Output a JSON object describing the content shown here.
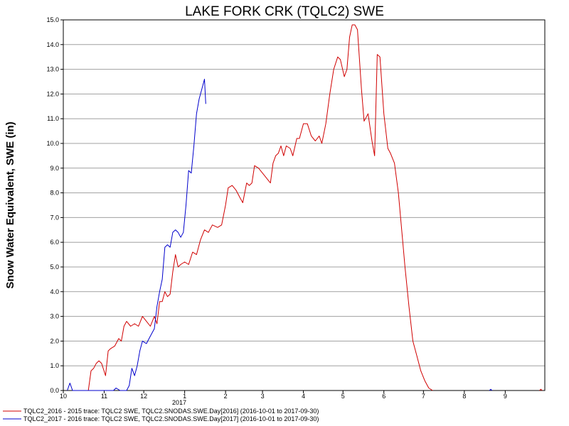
{
  "chart_data": {
    "type": "line",
    "title": "LAKE FORK CRK (TQLC2) SWE",
    "xlabel": "",
    "ylabel": "Snow Water Equivalent, SWE (in)",
    "ylim": [
      0,
      15
    ],
    "y_ticks": [
      "0.0",
      "1.0",
      "2.0",
      "3.0",
      "4.0",
      "5.0",
      "6.0",
      "7.0",
      "8.0",
      "9.0",
      "10.0",
      "11.0",
      "12.0",
      "13.0",
      "14.0",
      "15.0"
    ],
    "x_range": [
      "2016-10-01",
      "2017-09-30"
    ],
    "x_ticks": [
      {
        "label": "10",
        "date": "2016-10-01"
      },
      {
        "label": "11",
        "date": "2016-11-01"
      },
      {
        "label": "12",
        "date": "2016-12-01"
      },
      {
        "label": "1",
        "date": "2017-01-01"
      },
      {
        "label": "2",
        "date": "2017-02-01"
      },
      {
        "label": "3",
        "date": "2017-03-01"
      },
      {
        "label": "4",
        "date": "2017-04-01"
      },
      {
        "label": "5",
        "date": "2017-05-01"
      },
      {
        "label": "6",
        "date": "2017-06-01"
      },
      {
        "label": "7",
        "date": "2017-07-01"
      },
      {
        "label": "8",
        "date": "2017-08-01"
      },
      {
        "label": "9",
        "date": "2017-09-01"
      }
    ],
    "year_label": "2017",
    "grid": "horizontal",
    "legend_position": "bottom-left",
    "series": [
      {
        "name": "TQLC2_2016 - 2015 trace: TQLC2 SWE, TQLC2.SNODAS.SWE.Day[2016] (2016-10-01 to 2017-09-30)",
        "color": "#d00000",
        "points": [
          [
            "2016-10-20",
            0.0
          ],
          [
            "2016-10-22",
            0.8
          ],
          [
            "2016-10-24",
            0.9
          ],
          [
            "2016-10-26",
            1.1
          ],
          [
            "2016-10-28",
            1.2
          ],
          [
            "2016-10-30",
            1.1
          ],
          [
            "2016-11-02",
            0.6
          ],
          [
            "2016-11-04",
            1.6
          ],
          [
            "2016-11-06",
            1.7
          ],
          [
            "2016-11-09",
            1.8
          ],
          [
            "2016-11-12",
            2.1
          ],
          [
            "2016-11-14",
            2.0
          ],
          [
            "2016-11-16",
            2.6
          ],
          [
            "2016-11-18",
            2.8
          ],
          [
            "2016-11-21",
            2.6
          ],
          [
            "2016-11-24",
            2.7
          ],
          [
            "2016-11-27",
            2.6
          ],
          [
            "2016-11-30",
            3.0
          ],
          [
            "2016-12-03",
            2.8
          ],
          [
            "2016-12-06",
            2.6
          ],
          [
            "2016-12-09",
            3.0
          ],
          [
            "2016-12-11",
            2.7
          ],
          [
            "2016-12-13",
            3.6
          ],
          [
            "2016-12-15",
            3.6
          ],
          [
            "2016-12-17",
            4.0
          ],
          [
            "2016-12-19",
            3.8
          ],
          [
            "2016-12-21",
            3.9
          ],
          [
            "2016-12-23",
            4.8
          ],
          [
            "2016-12-25",
            5.5
          ],
          [
            "2016-12-27",
            5.0
          ],
          [
            "2016-12-29",
            5.1
          ],
          [
            "2017-01-01",
            5.2
          ],
          [
            "2017-01-04",
            5.1
          ],
          [
            "2017-01-07",
            5.6
          ],
          [
            "2017-01-10",
            5.5
          ],
          [
            "2017-01-13",
            6.1
          ],
          [
            "2017-01-16",
            6.5
          ],
          [
            "2017-01-19",
            6.4
          ],
          [
            "2017-01-22",
            6.7
          ],
          [
            "2017-01-26",
            6.6
          ],
          [
            "2017-01-29",
            6.7
          ],
          [
            "2017-02-01",
            7.5
          ],
          [
            "2017-02-03",
            8.2
          ],
          [
            "2017-02-06",
            8.3
          ],
          [
            "2017-02-09",
            8.1
          ],
          [
            "2017-02-12",
            7.8
          ],
          [
            "2017-02-14",
            7.6
          ],
          [
            "2017-02-17",
            8.4
          ],
          [
            "2017-02-19",
            8.3
          ],
          [
            "2017-02-21",
            8.4
          ],
          [
            "2017-02-23",
            9.1
          ],
          [
            "2017-02-26",
            9.0
          ],
          [
            "2017-03-01",
            8.8
          ],
          [
            "2017-03-04",
            8.6
          ],
          [
            "2017-03-07",
            8.4
          ],
          [
            "2017-03-09",
            9.2
          ],
          [
            "2017-03-11",
            9.5
          ],
          [
            "2017-03-13",
            9.6
          ],
          [
            "2017-03-15",
            9.9
          ],
          [
            "2017-03-17",
            9.5
          ],
          [
            "2017-03-19",
            9.9
          ],
          [
            "2017-03-22",
            9.8
          ],
          [
            "2017-03-24",
            9.5
          ],
          [
            "2017-03-27",
            10.2
          ],
          [
            "2017-03-29",
            10.2
          ],
          [
            "2017-04-01",
            10.8
          ],
          [
            "2017-04-04",
            10.8
          ],
          [
            "2017-04-07",
            10.3
          ],
          [
            "2017-04-10",
            10.1
          ],
          [
            "2017-04-13",
            10.3
          ],
          [
            "2017-04-15",
            10.0
          ],
          [
            "2017-04-18",
            10.8
          ],
          [
            "2017-04-21",
            12.0
          ],
          [
            "2017-04-24",
            13.0
          ],
          [
            "2017-04-27",
            13.5
          ],
          [
            "2017-04-29",
            13.4
          ],
          [
            "2017-05-02",
            12.7
          ],
          [
            "2017-05-04",
            13.0
          ],
          [
            "2017-05-06",
            14.3
          ],
          [
            "2017-05-08",
            14.8
          ],
          [
            "2017-05-10",
            14.8
          ],
          [
            "2017-05-12",
            14.6
          ],
          [
            "2017-05-15",
            12.2
          ],
          [
            "2017-05-17",
            10.9
          ],
          [
            "2017-05-20",
            11.2
          ],
          [
            "2017-05-23",
            10.1
          ],
          [
            "2017-05-25",
            9.5
          ],
          [
            "2017-05-27",
            13.6
          ],
          [
            "2017-05-29",
            13.5
          ],
          [
            "2017-06-01",
            11.2
          ],
          [
            "2017-06-04",
            9.8
          ],
          [
            "2017-06-06",
            9.6
          ],
          [
            "2017-06-09",
            9.2
          ],
          [
            "2017-06-12",
            8.0
          ],
          [
            "2017-06-15",
            6.2
          ],
          [
            "2017-06-17",
            5.0
          ],
          [
            "2017-06-20",
            3.4
          ],
          [
            "2017-06-23",
            2.0
          ],
          [
            "2017-06-26",
            1.4
          ],
          [
            "2017-06-29",
            0.8
          ],
          [
            "2017-07-02",
            0.4
          ],
          [
            "2017-07-05",
            0.1
          ],
          [
            "2017-07-08",
            0.0
          ]
        ]
      },
      {
        "name": "TQLC2_2017 - 2016 trace: TQLC2 SWE, TQLC2.SNODAS.SWE.Day[2017] (2016-10-01 to 2017-09-30)",
        "color": "#0000cc",
        "points": [
          [
            "2016-10-04",
            0.0
          ],
          [
            "2016-10-06",
            0.3
          ],
          [
            "2016-10-08",
            0.0
          ],
          [
            "2016-11-08",
            0.0
          ],
          [
            "2016-11-10",
            0.1
          ],
          [
            "2016-11-13",
            0.0
          ],
          [
            "2016-11-18",
            0.0
          ],
          [
            "2016-11-20",
            0.2
          ],
          [
            "2016-11-22",
            0.9
          ],
          [
            "2016-11-24",
            0.6
          ],
          [
            "2016-11-26",
            1.0
          ],
          [
            "2016-11-28",
            1.6
          ],
          [
            "2016-11-30",
            2.0
          ],
          [
            "2016-12-03",
            1.9
          ],
          [
            "2016-12-06",
            2.2
          ],
          [
            "2016-12-09",
            2.5
          ],
          [
            "2016-12-11",
            3.4
          ],
          [
            "2016-12-13",
            4.0
          ],
          [
            "2016-12-15",
            4.5
          ],
          [
            "2016-12-17",
            5.8
          ],
          [
            "2016-12-19",
            5.9
          ],
          [
            "2016-12-21",
            5.8
          ],
          [
            "2016-12-23",
            6.4
          ],
          [
            "2016-12-25",
            6.5
          ],
          [
            "2016-12-27",
            6.4
          ],
          [
            "2016-12-29",
            6.2
          ],
          [
            "2016-12-31",
            6.4
          ],
          [
            "2017-01-02",
            7.5
          ],
          [
            "2017-01-04",
            8.9
          ],
          [
            "2017-01-06",
            8.8
          ],
          [
            "2017-01-08",
            9.9
          ],
          [
            "2017-01-10",
            11.2
          ],
          [
            "2017-01-12",
            11.8
          ],
          [
            "2017-01-14",
            12.2
          ],
          [
            "2017-01-16",
            12.6
          ],
          [
            "2017-01-17",
            11.6
          ]
        ]
      }
    ],
    "extra_marks": [
      {
        "series": 1,
        "points": [
          [
            "2017-08-20",
            0.0
          ],
          [
            "2017-08-21",
            0.05
          ],
          [
            "2017-08-22",
            0.0
          ]
        ]
      },
      {
        "series": 0,
        "points": [
          [
            "2017-09-27",
            0.0
          ],
          [
            "2017-09-28",
            0.05
          ],
          [
            "2017-09-29",
            0.0
          ]
        ]
      }
    ]
  }
}
